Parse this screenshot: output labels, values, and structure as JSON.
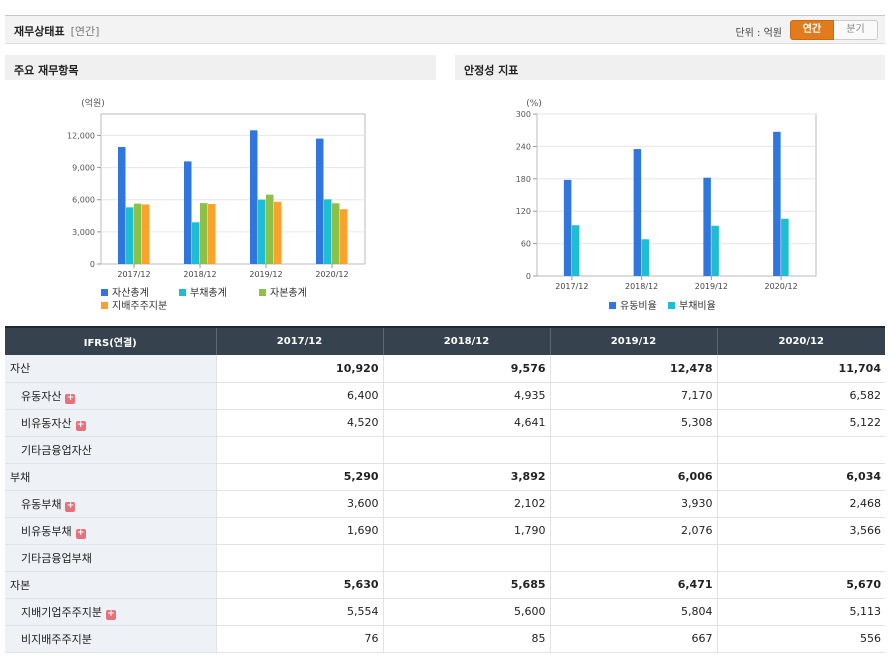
{
  "header": {
    "title": "재무상태표",
    "subtitle": "[연간]",
    "unit_label": "단위 : 억원",
    "tab_annual": "연간",
    "tab_quarter": "분기"
  },
  "panels": {
    "left_title": "주요 재무항목",
    "right_title": "안정성 지표"
  },
  "colors": {
    "asset": "#2f77dc",
    "liab": "#1fbdd2",
    "equity": "#8ec048",
    "parent": "#f9a32d",
    "header_bg": "#36424e",
    "accent": "#e07c1d"
  },
  "chart_data": [
    {
      "type": "bar",
      "title": "주요 재무항목",
      "ylabel": "(억원)",
      "categories": [
        "2017/12",
        "2018/12",
        "2019/12",
        "2020/12"
      ],
      "ylim": [
        0,
        14000
      ],
      "yticks": [
        0,
        3000,
        6000,
        9000,
        12000
      ],
      "ytick_labels": [
        "0",
        "3,000",
        "6,000",
        "9,000",
        "12,000"
      ],
      "legend_position": "bottom",
      "series": [
        {
          "name": "자산총계",
          "values": [
            10920,
            9576,
            12478,
            11704
          ]
        },
        {
          "name": "부채총계",
          "values": [
            5290,
            3892,
            6006,
            6034
          ]
        },
        {
          "name": "자본총계",
          "values": [
            5630,
            5685,
            6471,
            5670
          ]
        },
        {
          "name": "지배주주지분",
          "values": [
            5554,
            5600,
            5804,
            5113
          ]
        }
      ]
    },
    {
      "type": "bar",
      "title": "안정성 지표",
      "ylabel": "(%)",
      "categories": [
        "2017/12",
        "2018/12",
        "2019/12",
        "2020/12"
      ],
      "ylim": [
        0,
        300
      ],
      "yticks": [
        0,
        60,
        120,
        180,
        240,
        300
      ],
      "ytick_labels": [
        "0",
        "60",
        "120",
        "180",
        "240",
        "300"
      ],
      "legend_position": "bottom",
      "series": [
        {
          "name": "유동비율",
          "values": [
            178,
            235,
            182,
            267
          ]
        },
        {
          "name": "부채비율",
          "values": [
            94,
            68,
            93,
            106
          ]
        }
      ]
    }
  ],
  "table": {
    "corner": "IFRS(연결)",
    "periods": [
      "2017/12",
      "2018/12",
      "2019/12",
      "2020/12"
    ],
    "rows": [
      {
        "label": "자산",
        "values": [
          "10,920",
          "9,576",
          "12,478",
          "11,704"
        ]
      },
      {
        "label": "유동자산",
        "values": [
          "6,400",
          "4,935",
          "7,170",
          "6,582"
        ]
      },
      {
        "label": "비유동자산",
        "values": [
          "4,520",
          "4,641",
          "5,308",
          "5,122"
        ]
      },
      {
        "label": "기타금융업자산",
        "values": [
          "",
          "",
          "",
          ""
        ]
      },
      {
        "label": "부채",
        "values": [
          "5,290",
          "3,892",
          "6,006",
          "6,034"
        ]
      },
      {
        "label": "유동부채",
        "values": [
          "3,600",
          "2,102",
          "3,930",
          "2,468"
        ]
      },
      {
        "label": "비유동부채",
        "values": [
          "1,690",
          "1,790",
          "2,076",
          "3,566"
        ]
      },
      {
        "label": "기타금융업부채",
        "values": [
          "",
          "",
          "",
          ""
        ]
      },
      {
        "label": "자본",
        "values": [
          "5,630",
          "5,685",
          "6,471",
          "5,670"
        ]
      },
      {
        "label": "지배기업주주지분",
        "values": [
          "5,554",
          "5,600",
          "5,804",
          "5,113"
        ]
      },
      {
        "label": "비지배주주지분",
        "values": [
          "76",
          "85",
          "667",
          "556"
        ]
      }
    ],
    "expand_symbol": "+"
  }
}
